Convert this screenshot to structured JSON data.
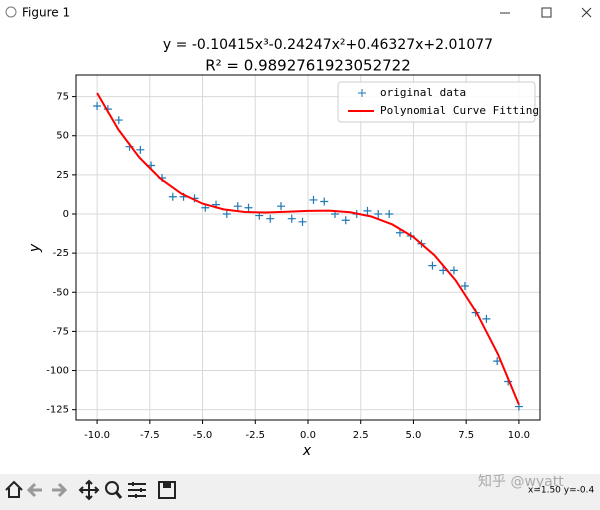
{
  "window": {
    "title": "Figure 1",
    "status": "x=1.50 y=-0.4",
    "watermark": "知乎 @wyatt"
  },
  "chart_data": {
    "type": "scatter",
    "title": "y = -0.10415x³-0.24247x²+0.46327x+2.01077",
    "subtitle": "R² = 0.9892761923052722",
    "x_label": "x",
    "y_label": "y",
    "xlim": [
      -11,
      11
    ],
    "ylim": [
      -131.6,
      88.8
    ],
    "xticks": [
      {
        "value": -10,
        "label": "-10.0"
      },
      {
        "value": -7.5,
        "label": "-7.5"
      },
      {
        "value": -5,
        "label": "-5.0"
      },
      {
        "value": -2.5,
        "label": "-2.5"
      },
      {
        "value": 0,
        "label": "0.0"
      },
      {
        "value": 2.5,
        "label": "2.5"
      },
      {
        "value": 5,
        "label": "5.0"
      },
      {
        "value": 7.5,
        "label": "7.5"
      },
      {
        "value": 10,
        "label": "10.0"
      }
    ],
    "yticks": [
      -125,
      -100,
      -75,
      -50,
      -25,
      0,
      25,
      50,
      75
    ],
    "grid": true,
    "legend": "upper right",
    "series": [
      {
        "name": "original data",
        "type": "scatter",
        "color": "#1f77b4",
        "x": [
          -10,
          -9.49,
          -8.97,
          -8.46,
          -7.95,
          -7.44,
          -6.92,
          -6.41,
          -5.9,
          -5.38,
          -4.87,
          -4.36,
          -3.85,
          -3.33,
          -2.82,
          -2.31,
          -1.79,
          -1.28,
          -0.77,
          -0.26,
          0.26,
          0.77,
          1.28,
          1.79,
          2.31,
          2.82,
          3.33,
          3.85,
          4.36,
          4.87,
          5.38,
          5.9,
          6.41,
          6.92,
          7.44,
          7.95,
          8.46,
          8.97,
          9.49,
          10
        ],
        "values": [
          69,
          67,
          60,
          43,
          41,
          31,
          23,
          11,
          11,
          10,
          4,
          6,
          0,
          5,
          4,
          -1,
          -3,
          5,
          -3,
          -5,
          9,
          8,
          0,
          -4,
          0,
          2,
          0,
          0,
          -12,
          -14,
          -19,
          -33,
          -36,
          -36,
          -46,
          -63,
          -67,
          -94,
          -107,
          -123
        ]
      },
      {
        "name": "Polynomial Curve Fitting",
        "type": "line",
        "color": "#ff0000",
        "x": [
          -10,
          -9,
          -8,
          -7,
          -6,
          -5,
          -4,
          -3,
          -2,
          -1,
          0,
          1,
          2,
          3,
          4,
          5,
          6,
          7,
          8,
          9,
          10
        ],
        "values": [
          77.28,
          54.13,
          36.11,
          22.61,
          13.0,
          6.65,
          2.94,
          1.25,
          0.95,
          1.41,
          2.01,
          2.13,
          1.13,
          -1.59,
          -6.68,
          -14.75,
          -26.43,
          -42.35,
          -63.13,
          -89.39,
          -121.75
        ]
      }
    ]
  }
}
